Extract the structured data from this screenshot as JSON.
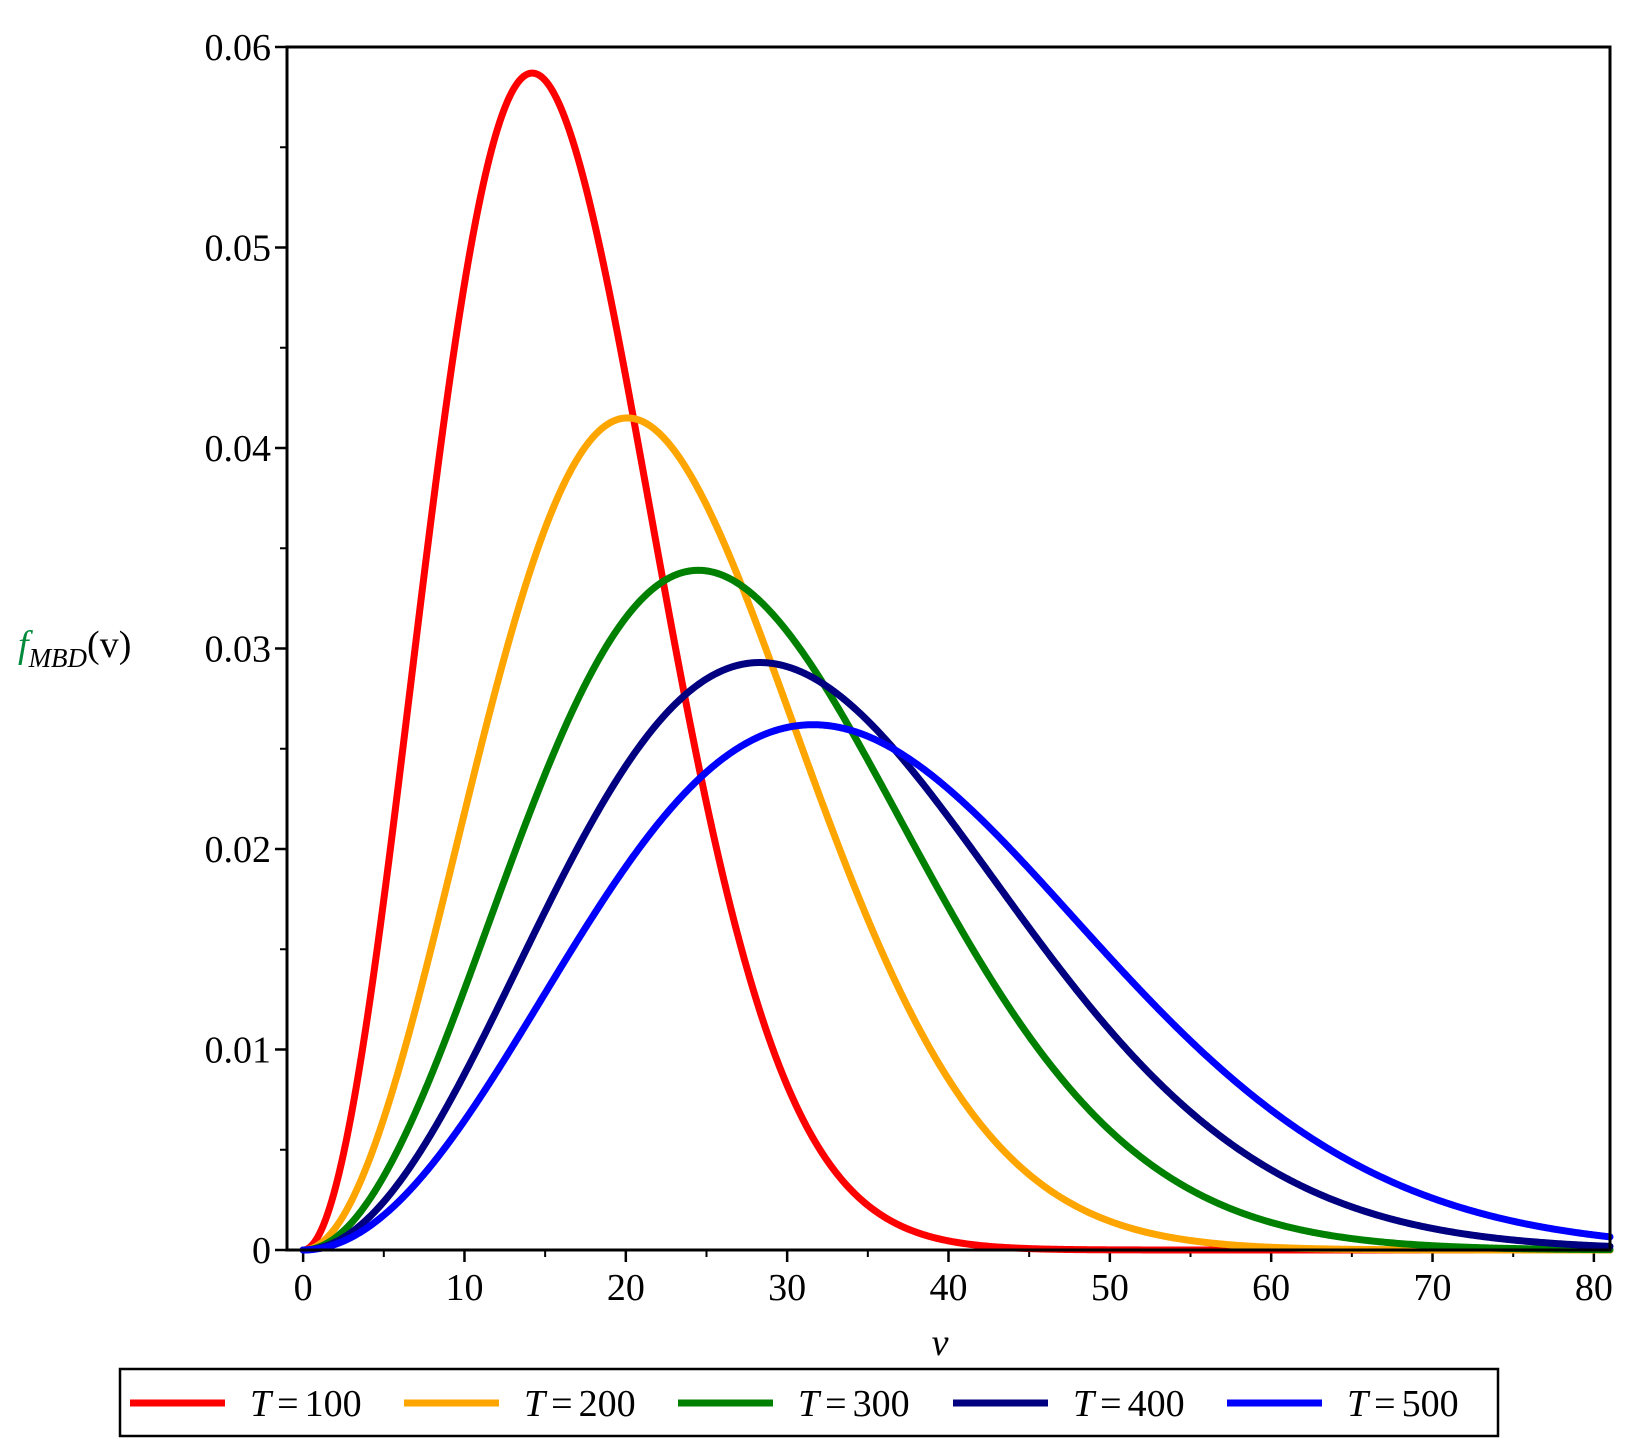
{
  "chart_data": {
    "type": "line",
    "title": "",
    "xlabel": "v",
    "ylabel": {
      "base": "f",
      "subscript": "MBD",
      "arg": "(v)"
    },
    "xlim": [
      -1,
      81
    ],
    "ylim": [
      0,
      0.06
    ],
    "x_ticks": [
      0,
      10,
      20,
      30,
      40,
      50,
      60,
      70,
      80
    ],
    "y_ticks": [
      0,
      0.01,
      0.02,
      0.03,
      0.04,
      0.05,
      0.06
    ],
    "x_tick_labels": [
      "0",
      "10",
      "20",
      "30",
      "40",
      "50",
      "60",
      "70",
      "80"
    ],
    "y_tick_labels": [
      "0",
      "0.01",
      "0.02",
      "0.03",
      "0.04",
      "0.05",
      "0.06"
    ],
    "grid": false,
    "legend_position": "bottom",
    "series": [
      {
        "name": "T = 100",
        "var": "T",
        "value": "100",
        "color": "#ff0000",
        "peak_x": 14.2,
        "peak_y": 0.0587
      },
      {
        "name": "T = 200",
        "var": "T",
        "value": "200",
        "color": "#ffa500",
        "peak_x": 20.1,
        "peak_y": 0.0415
      },
      {
        "name": "T = 300",
        "var": "T",
        "value": "300",
        "color": "#008000",
        "peak_x": 24.5,
        "peak_y": 0.0339
      },
      {
        "name": "T = 400",
        "var": "T",
        "value": "400",
        "color": "#000080",
        "peak_x": 28.3,
        "peak_y": 0.0293
      },
      {
        "name": "T = 500",
        "var": "T",
        "value": "500",
        "color": "#0000ff",
        "peak_x": 31.6,
        "peak_y": 0.0262
      }
    ]
  }
}
